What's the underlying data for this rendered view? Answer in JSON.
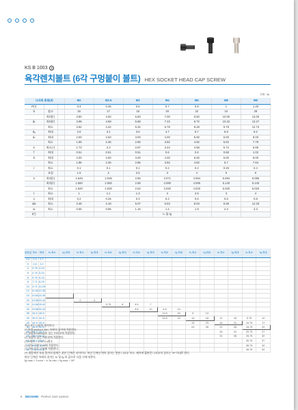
{
  "header": {
    "standard": "KS B 1003",
    "ks_mark": "K",
    "title_ko": "육각렌치볼트 (6각 구멍붙이 볼트)",
    "title_en": "HEX SOCKET HEAD CAP SCREW"
  },
  "unit_note": "단위 : ㎜",
  "spec_table": {
    "header_label": "나사의 호칭(d)",
    "sizes": [
      "M2",
      "M2.5",
      "M3",
      "M4",
      "M5",
      "M6",
      "M8"
    ],
    "rows": [
      {
        "sym": "P(¹)",
        "sub": "",
        "mm": "",
        "vals": [
          "0.4",
          "0.45",
          "0.5",
          "0.7",
          "0.8",
          "1",
          "1.25"
        ]
      },
      {
        "sym": "b",
        "sub": "참고",
        "mm": "",
        "vals": [
          "16",
          "17",
          "18",
          "20",
          "22",
          "24",
          "28"
        ]
      },
      {
        "sym": "",
        "sub": "최대(²)",
        "mm": "",
        "vals": [
          "3.80",
          "4.50",
          "5.50",
          "7.00",
          "8.50",
          "10.00",
          "13.00"
        ]
      },
      {
        "sym": "dₖ",
        "sub": "최대(³)",
        "mm": "",
        "vals": [
          "3.98",
          "4.68",
          "5.68",
          "7.22",
          "8.72",
          "10.22",
          "13.27"
        ]
      },
      {
        "sym": "",
        "sub": "최소",
        "mm": "",
        "vals": [
          "3.62",
          "4.32",
          "5.32",
          "6.78",
          "8.28",
          "9.78",
          "12.73"
        ]
      },
      {
        "sym": "dₐ",
        "sub": "최대",
        "mm": "",
        "vals": [
          "2.6",
          "3.1",
          "3.6",
          "4.7",
          "5.7",
          "6.8",
          "9.2"
        ]
      },
      {
        "sym": "dₛ",
        "sub": "최대",
        "mm": "",
        "vals": [
          "2.00",
          "2.50",
          "3.00",
          "4.00",
          "5.00",
          "6.00",
          "8.00"
        ]
      },
      {
        "sym": "",
        "sub": "최소",
        "mm": "",
        "vals": [
          "1.86",
          "2.36",
          "2.86",
          "3.82",
          "4.82",
          "5.82",
          "7.78"
        ]
      },
      {
        "sym": "e",
        "sub": "최소(⁴)",
        "mm": "",
        "vals": [
          "1.73",
          "2.3",
          "2.87",
          "3.44",
          "4.58",
          "5.72",
          "6.86"
        ]
      },
      {
        "sym": "f",
        "sub": "최대",
        "mm": "",
        "vals": [
          "0.51",
          "0.51",
          "0.51",
          "0.6",
          "0.6",
          "0.68",
          "1.02"
        ]
      },
      {
        "sym": "k",
        "sub": "최대",
        "mm": "",
        "vals": [
          "2.00",
          "2.50",
          "3.00",
          "4.00",
          "5.00",
          "6.00",
          "8.00"
        ]
      },
      {
        "sym": "",
        "sub": "최소",
        "mm": "",
        "vals": [
          "1.86",
          "2.36",
          "2.86",
          "3.82",
          "4.82",
          "5.7",
          "7.64"
        ]
      },
      {
        "sym": "r",
        "sub": "최소",
        "mm": "",
        "vals": [
          "0.1",
          "0.1",
          "0.1",
          "0.2",
          "0.2",
          "0.25",
          "0.4"
        ]
      },
      {
        "sym": "",
        "sub": "호칭",
        "mm": "",
        "vals": [
          "1.5",
          "2",
          "2.5",
          "3",
          "4",
          "5",
          "6"
        ]
      },
      {
        "sym": "s",
        "sub": "최대(⁵)",
        "mm": "",
        "vals": [
          "1.545",
          "2.045",
          "2.56",
          "3.071",
          "4.084",
          "5.084",
          "6.095"
        ]
      },
      {
        "sym": "",
        "sub": "최대(⁶)",
        "mm": "",
        "vals": [
          "1.560",
          "2.060",
          "2.58",
          "3.080",
          "4.095",
          "5.140",
          "6.140"
        ]
      },
      {
        "sym": "",
        "sub": "최소",
        "mm": "",
        "vals": [
          "1.520",
          "2.020",
          "2.52",
          "3.020",
          "4.020",
          "5.020",
          "6.020"
        ]
      },
      {
        "sym": "t",
        "sub": "최소",
        "mm": "",
        "vals": [
          "1",
          "1.1",
          "1.3",
          "2",
          "2.5",
          "3",
          "4"
        ]
      },
      {
        "sym": "v",
        "sub": "최대",
        "mm": "",
        "vals": [
          "0.2",
          "0.25",
          "0.3",
          "0.4",
          "0.5",
          "0.6",
          "0.8"
        ]
      },
      {
        "sym": "dw",
        "sub": "최소",
        "mm": "",
        "vals": [
          "3.48",
          "4.18",
          "5.07",
          "6.53",
          "8.03",
          "9.38",
          "12.33"
        ]
      },
      {
        "sym": "w",
        "sub": "최소",
        "mm": "",
        "vals": [
          "0.55",
          "0.85",
          "1.15",
          "1.4",
          "1.9",
          "2.3",
          "3.3"
        ]
      },
      {
        "sym": "ℓ(⁷)",
        "sub": "",
        "mm": "",
        "vals": [
          "",
          "",
          "",
          "ℓₛ 및 ℓg",
          "",
          "",
          ""
        ]
      }
    ]
  },
  "length_table": {
    "col_labels": [
      "호칭길이",
      "최소",
      "최대"
    ],
    "pair_labels": [
      "ℓs 최소",
      "ℓg 최대"
    ],
    "rows": [
      [
        "2.5",
        "2.3",
        "2.7"
      ],
      [
        "3",
        "2.8",
        "3.2"
      ],
      [
        "4",
        "3.76",
        "4.24"
      ],
      [
        "5",
        "4.76",
        "5.24"
      ],
      [
        "6",
        "5.76",
        "6.24"
      ],
      [
        "8",
        "7.71",
        "8.29"
      ],
      [
        "10",
        "9.71",
        "10.29"
      ],
      [
        "12",
        "11.65",
        "12.35"
      ],
      [
        "16",
        "15.65",
        "16.35"
      ],
      [
        "20",
        "19.58",
        "20.42"
      ],
      [
        "25",
        "24.58",
        "25.42"
      ],
      [
        "30",
        "29.58",
        "30.42"
      ],
      [
        "35",
        "34.5",
        "35.5"
      ],
      [
        "40",
        "39.5",
        "40.5"
      ],
      [
        "45",
        "44.5",
        "45.5"
      ],
      [
        "50",
        "49.5",
        "50.5"
      ],
      [
        "55",
        "54.4",
        "55.6"
      ],
      [
        "60",
        "59.4",
        "60.6"
      ],
      [
        "65",
        "64.4",
        "65.6"
      ],
      [
        "70",
        "69.4",
        "70.6"
      ],
      [
        "80",
        "79.4",
        "80.6"
      ]
    ],
    "cells": {
      "9": {
        "2": "2",
        "3": "4"
      },
      "10": {
        "4": "5.75",
        "5": "8",
        "6": "4.5",
        "7": "7"
      },
      "11": {
        "6": "9.5",
        "7": "12",
        "8": "6.5",
        "9": "10"
      },
      "12": {
        "8": "11.5",
        "9": "15",
        "10": "9",
        "11": "13"
      },
      "13": {
        "8": "16.5",
        "9": "20",
        "10": "14",
        "11": "18",
        "12": "11",
        "13": "16",
        "14": "5.75",
        "15": "12"
      },
      "14": {
        "10": "19",
        "11": "23",
        "12": "16",
        "13": "21",
        "14": "10.75",
        "15": "17"
      },
      "15": {
        "10": "24",
        "11": "28",
        "12": "21",
        "13": "26",
        "14": "15.75",
        "15": "22"
      },
      "16": {
        "12": "26",
        "13": "31",
        "14": "20.75",
        "15": "27"
      },
      "17": {
        "12": "31",
        "13": "36",
        "14": "25.75",
        "15": "32"
      },
      "18": {
        "14": "30.75",
        "15": "37"
      },
      "19": {
        "14": "35.75",
        "15": "42"
      },
      "20": {
        "14": "45.75",
        "15": "52"
      }
    }
  },
  "notes": [
    "주(¹) P는 나사의 피치이다.",
    "(²) 파선(dashed line) 아래의 길이에 적용한다.",
    "(³) 널링(Knurling)이 있는 머리부에 적용한다.",
    "(⁴) 널링이 있는 머리부에 적용한다.",
    "(⁵) e최소 = 1.14 × s최소",
    "(⁶) 강도 구분 12.9에 적용한다.",
    "(⁷) 기타 강도 구분에 적용한다.",
    "(⁸) 생동색인 호칭 길이의 범위는 굵은 단계선 사이이다. 파선 단계선 위의 길이는 원한 나사부 하고, 제이에 불완전 나사부의 길이는 3P 이내로 한다.",
    "      파선 단계선 아래의 길이는 ℓs 및 ℓg 의 값으로 다음 식에 따른다.",
    "      ℓg max = ℓ nom − b,  ℓs min = ℓg max − 5P"
  ],
  "footer": {
    "page": "6",
    "brand": "SEOSHIN",
    "text": "Perfect Joint System"
  },
  "colors": {
    "accent": "#1f82c8"
  }
}
